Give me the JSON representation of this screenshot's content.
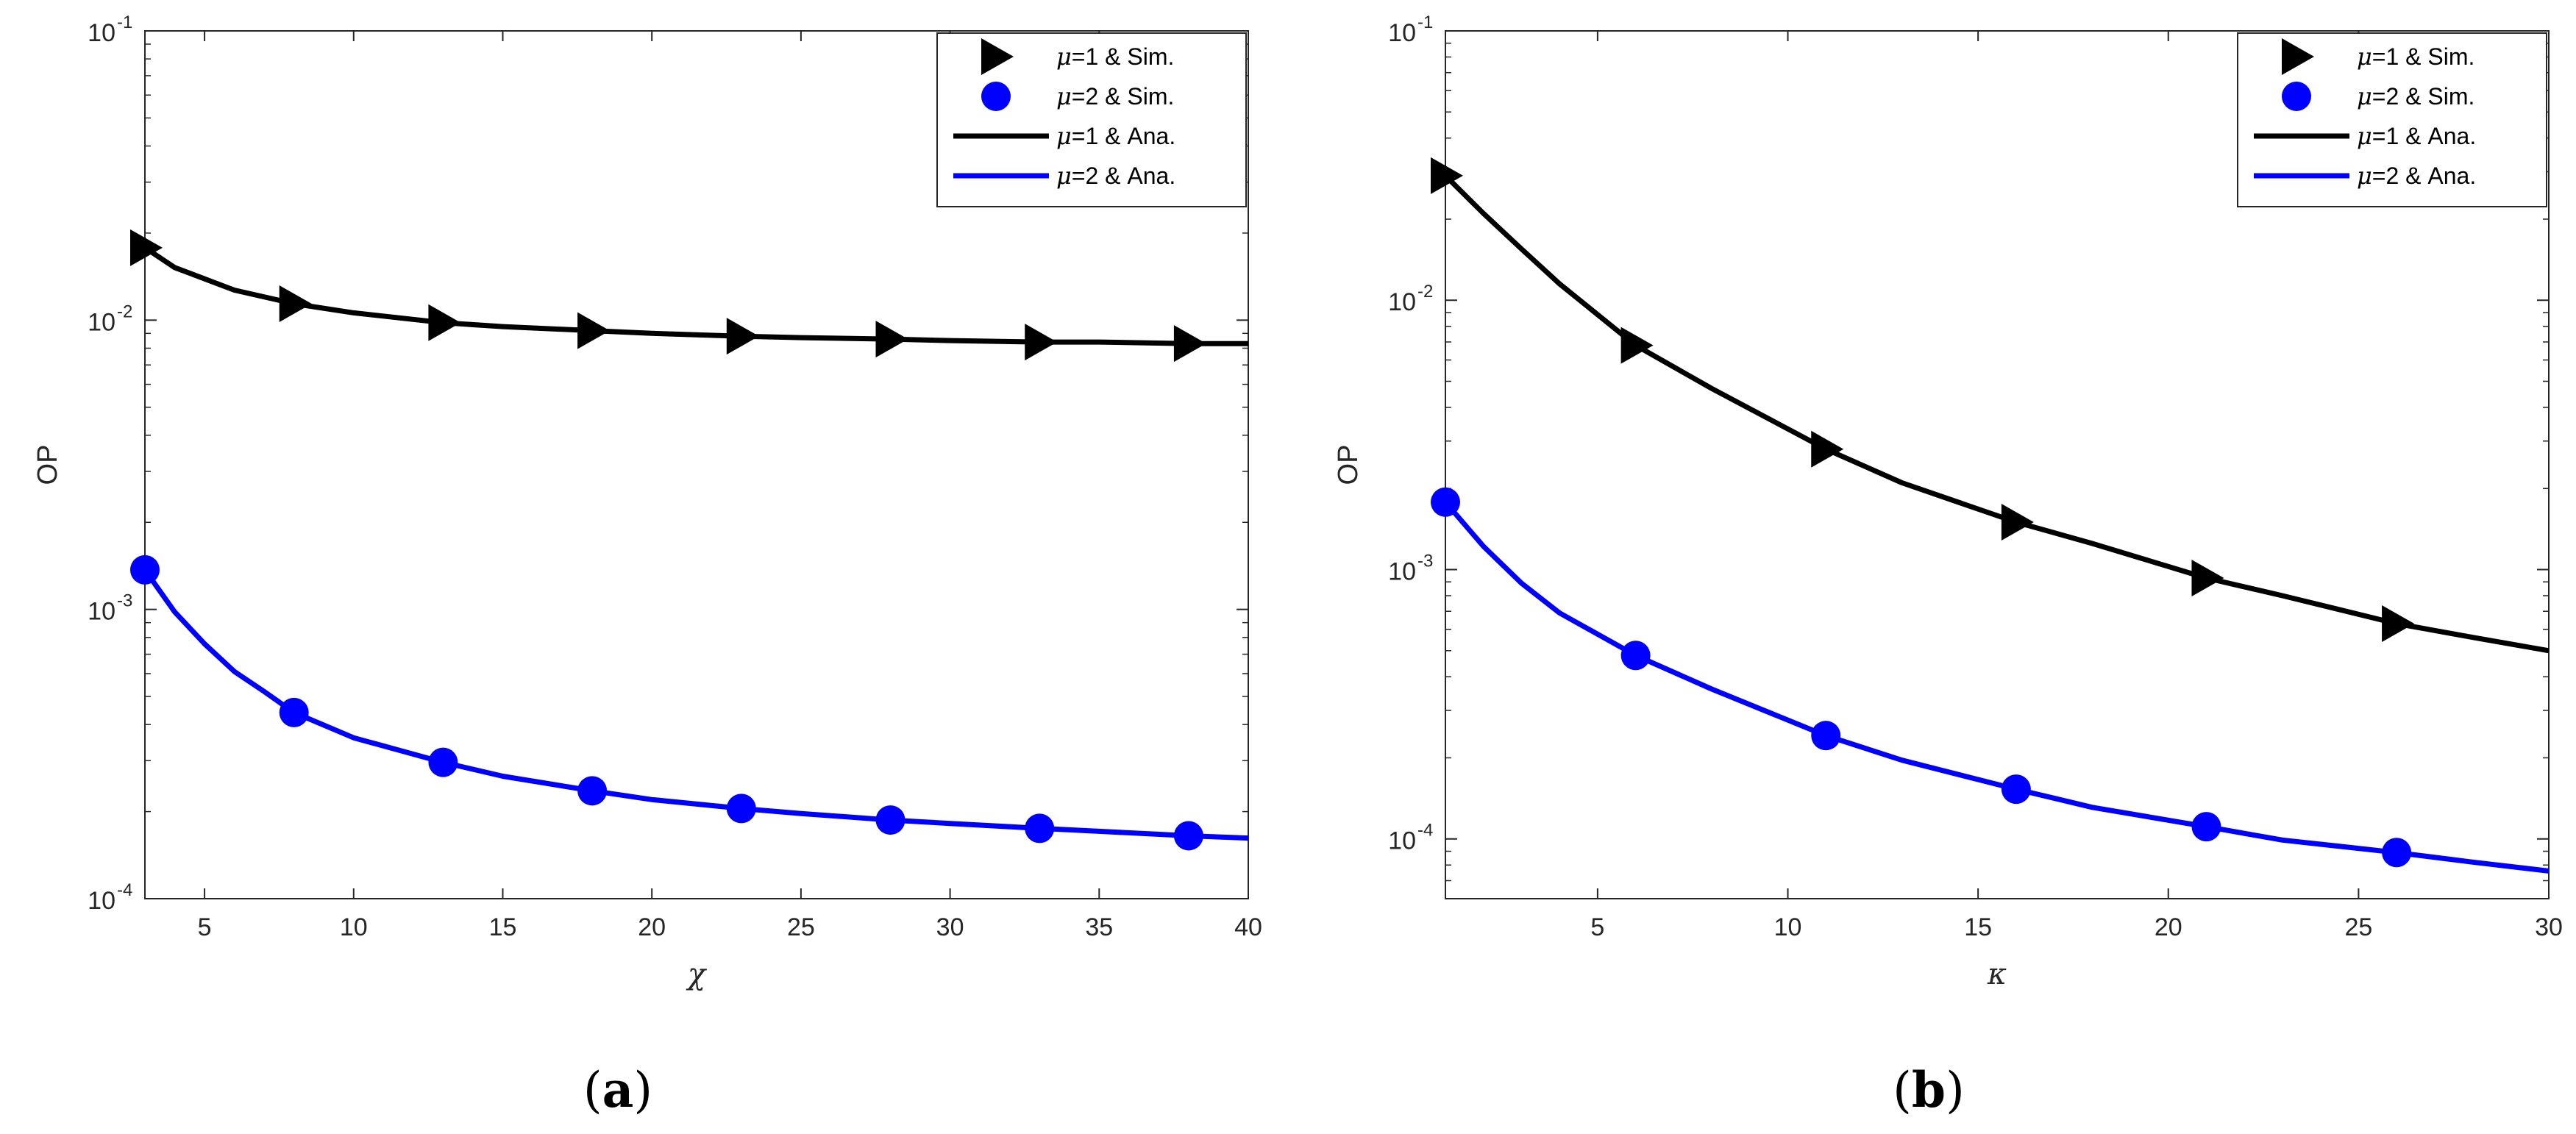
{
  "chart_data": [
    {
      "type": "line",
      "panel_label": "a",
      "xlabel": "χ",
      "ylabel": "OP",
      "xlim": [
        3,
        40
      ],
      "ylim": [
        0.0001,
        0.1
      ],
      "yscale": "log",
      "xticks": [
        5,
        10,
        15,
        20,
        25,
        30,
        35,
        40
      ],
      "yticks": [
        {
          "value": 0.0001,
          "base": "10",
          "exp": "-4"
        },
        {
          "value": 0.001,
          "base": "10",
          "exp": "-3"
        },
        {
          "value": 0.01,
          "base": "10",
          "exp": "-2"
        },
        {
          "value": 0.1,
          "base": "10",
          "exp": "-1"
        }
      ],
      "legend_position": "top-right",
      "series": [
        {
          "name": "μ=1 & Sim.",
          "legend_mu": "μ",
          "legend_text": "=1 & Sim.",
          "kind": "marker",
          "marker": "triangle-right",
          "color": "#000000",
          "x": [
            3,
            8,
            13,
            18,
            23,
            28,
            33,
            38
          ],
          "y": [
            0.0178,
            0.0114,
            0.0098,
            0.0092,
            0.0088,
            0.0086,
            0.0084,
            0.0083
          ]
        },
        {
          "name": "μ=2 & Sim.",
          "legend_mu": "μ",
          "legend_text": "=2 & Sim.",
          "kind": "marker",
          "marker": "circle",
          "color": "#0000ff",
          "x": [
            3,
            8,
            13,
            18,
            23,
            28,
            33,
            38
          ],
          "y": [
            0.00137,
            0.00044,
            0.000296,
            0.000236,
            0.000205,
            0.000187,
            0.000175,
            0.000165
          ]
        },
        {
          "name": "μ=1 & Ana.",
          "legend_mu": "μ",
          "legend_text": "=1 & Ana.",
          "kind": "line",
          "color": "#000000",
          "x": [
            3,
            4,
            6,
            8,
            10,
            13,
            15,
            18,
            20,
            23,
            25,
            28,
            30,
            33,
            35,
            38,
            40
          ],
          "y": [
            0.0178,
            0.0152,
            0.0127,
            0.0114,
            0.0106,
            0.0098,
            0.0095,
            0.0092,
            0.009,
            0.0088,
            0.0087,
            0.0086,
            0.0085,
            0.0084,
            0.0084,
            0.0083,
            0.0083
          ]
        },
        {
          "name": "μ=2 & Ana.",
          "legend_mu": "μ",
          "legend_text": "=2 & Ana.",
          "kind": "line",
          "color": "#0000ff",
          "x": [
            3,
            4,
            5,
            6,
            7,
            8,
            10,
            13,
            15,
            18,
            20,
            23,
            25,
            28,
            30,
            33,
            35,
            38,
            40
          ],
          "y": [
            0.00137,
            0.00098,
            0.00076,
            0.00061,
            0.00052,
            0.00044,
            0.00036,
            0.000296,
            0.000265,
            0.000236,
            0.00022,
            0.000205,
            0.000197,
            0.000187,
            0.000182,
            0.000175,
            0.000171,
            0.000165,
            0.000162
          ]
        }
      ]
    },
    {
      "type": "line",
      "panel_label": "b",
      "xlabel": "κ",
      "ylabel": "OP",
      "xlim": [
        1,
        30
      ],
      "ylim": [
        6e-05,
        0.1
      ],
      "yscale": "log",
      "xticks": [
        5,
        10,
        15,
        20,
        25,
        30
      ],
      "yticks": [
        {
          "value": 0.0001,
          "base": "10",
          "exp": "-4"
        },
        {
          "value": 0.001,
          "base": "10",
          "exp": "-3"
        },
        {
          "value": 0.01,
          "base": "10",
          "exp": "-2"
        },
        {
          "value": 0.1,
          "base": "10",
          "exp": "-1"
        }
      ],
      "legend_position": "top-right",
      "series": [
        {
          "name": "μ=1 & Sim.",
          "legend_mu": "μ",
          "legend_text": "=1 & Sim.",
          "kind": "marker",
          "marker": "triangle-right",
          "color": "#000000",
          "x": [
            1,
            6,
            11,
            16,
            21,
            26
          ],
          "y": [
            0.029,
            0.0068,
            0.0028,
            0.0015,
            0.00093,
            0.00063
          ]
        },
        {
          "name": "μ=2 & Sim.",
          "legend_mu": "μ",
          "legend_text": "=2 & Sim.",
          "kind": "marker",
          "marker": "circle",
          "color": "#0000ff",
          "x": [
            1,
            6,
            11,
            16,
            21,
            26
          ],
          "y": [
            0.00178,
            0.00048,
            0.000242,
            0.000153,
            0.000111,
            8.9e-05
          ]
        },
        {
          "name": "μ=1 & Ana.",
          "legend_mu": "μ",
          "legend_text": "=1 & Ana.",
          "kind": "line",
          "color": "#000000",
          "x": [
            1,
            2,
            3,
            4,
            6,
            8,
            11,
            13,
            16,
            18,
            21,
            23,
            26,
            28,
            30
          ],
          "y": [
            0.029,
            0.021,
            0.0155,
            0.0115,
            0.0068,
            0.0047,
            0.0028,
            0.0021,
            0.0015,
            0.00125,
            0.00093,
            0.0008,
            0.00063,
            0.00056,
            0.0005
          ]
        },
        {
          "name": "μ=2 & Ana.",
          "legend_mu": "μ",
          "legend_text": "=2 & Ana.",
          "kind": "line",
          "color": "#0000ff",
          "x": [
            1,
            2,
            3,
            4,
            6,
            8,
            11,
            13,
            16,
            18,
            21,
            23,
            26,
            28,
            30
          ],
          "y": [
            0.00178,
            0.00122,
            0.00089,
            0.00069,
            0.00048,
            0.00036,
            0.000242,
            0.000196,
            0.000153,
            0.000131,
            0.000111,
            9.9e-05,
            8.9e-05,
            8.2e-05,
            7.6e-05
          ]
        }
      ]
    }
  ],
  "captions": [
    {
      "open": "(",
      "label": "a",
      "close": ")"
    },
    {
      "open": "(",
      "label": "b",
      "close": ")"
    }
  ]
}
